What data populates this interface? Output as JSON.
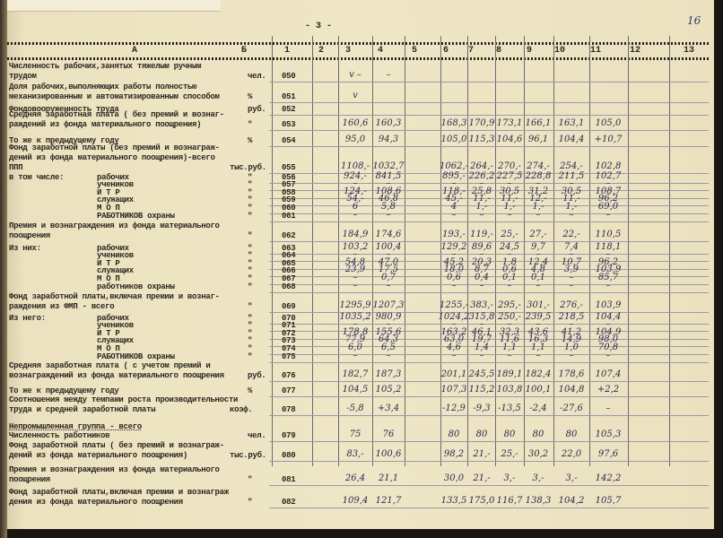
{
  "page_number": "- 3 -",
  "archive_sheet_number": "16",
  "header": {
    "A": "А",
    "B": "Б",
    "cols": [
      "1",
      "2",
      "3",
      "4",
      "5",
      "6",
      "7",
      "8",
      "9",
      "10",
      "11",
      "12",
      "13"
    ]
  },
  "rows": [
    {
      "code": "050",
      "unit": "чел.",
      "label": [
        "Численность рабочих,занятых тяжелым ручным",
        "трудом"
      ],
      "v": {
        "3": "v  –",
        "4": "–"
      }
    },
    {
      "code": "051",
      "unit": "%",
      "label": [
        "Доля рабочих,выполняющих работы полностью",
        "механизированным и автоматизированным способом"
      ],
      "v": {
        "3": "v"
      }
    },
    {
      "code": "052",
      "unit": "руб.",
      "label": [
        "Фондовооруженность труда"
      ],
      "v": {}
    },
    {
      "code": "053",
      "unit": "\"",
      "label": [
        "Средняя заработная плата ( без премий и вознаг-",
        "раждений из фонда материального поощрения)"
      ],
      "v": {
        "3": "160,6",
        "4": "160,3",
        "6": "168,3",
        "7": "170,9",
        "8": "173,1",
        "9": "166,1",
        "10": "163,1",
        "11": "105,0"
      }
    },
    {
      "code": "054",
      "unit": "%",
      "label": [
        "То же к предыдущему году"
      ],
      "v": {
        "3": "95,0",
        "4": "94,3",
        "6": "105,0",
        "7": "115,3",
        "8": "104,6",
        "9": "96,1",
        "10": "104,4",
        "11": "+10,7"
      }
    },
    {
      "code": "055",
      "unit": "тыс.руб.",
      "label": [
        "Фонд заработной платы (без премий и вознаграж-",
        "дений из фонда материального поощрения)-всего",
        "                                   ППП"
      ],
      "v": {
        "3": "1108,-",
        "4": "1032,7",
        "6": "1062,-",
        "7": "264,-",
        "8": "270,-",
        "9": "274,-",
        "10": "254,-",
        "11": "102,8"
      }
    },
    {
      "code": "056",
      "unit": "\"",
      "prefix": "в том числе:",
      "label": [
        "рабочих"
      ],
      "sub": true,
      "v": {
        "3": "924,-",
        "4": "841,5",
        "6": "895,-",
        "7": "226,2",
        "8": "227,5",
        "9": "228,8",
        "10": "211,5",
        "11": "102,7"
      }
    },
    {
      "code": "057",
      "unit": "\"",
      "label": [
        "учеников"
      ],
      "sub": true,
      "v": {
        "3": "–",
        "4": "–",
        "6": "–",
        "7": "–",
        "8": "–",
        "9": "–",
        "10": "–",
        "11": "–"
      }
    },
    {
      "code": "058",
      "unit": "\"",
      "label": [
        "И Т Р"
      ],
      "sub": true,
      "v": {
        "3": "124,-",
        "4": "108,6",
        "6": "118,-",
        "7": "25,8",
        "8": "30,5",
        "9": "31,2",
        "10": "30,5",
        "11": "108,7"
      }
    },
    {
      "code": "059",
      "unit": "\"",
      "label": [
        "служащих"
      ],
      "sub": true,
      "v": {
        "3": "54,-",
        "4": "46,8",
        "6": "45,-",
        "7": "11,-",
        "8": "11,-",
        "9": "12,-",
        "10": "11,-",
        "11": "96,2"
      }
    },
    {
      "code": "060",
      "unit": "\"",
      "label": [
        "М О П"
      ],
      "sub": true,
      "v": {
        "3": "6",
        "4": "5,8",
        "6": "4",
        "7": "1,-",
        "8": "1,-",
        "9": "1,-",
        "10": "1,-",
        "11": "69,0"
      }
    },
    {
      "code": "061",
      "unit": "\"",
      "label": [
        "РАБОТНИКОВ охраны"
      ],
      "sub": true,
      "v": {
        "3": "–",
        "4": "–",
        "6": "–",
        "7": "–",
        "8": "–",
        "9": "–",
        "10": "–",
        "11": "–"
      }
    },
    {
      "code": "062",
      "unit": "\"",
      "label": [
        "Премия и вознаграждения из фонда материального",
        "поощрения"
      ],
      "v": {
        "3": "184,9",
        "4": "174,6",
        "6": "193,-",
        "7": "119,-",
        "8": "25,-",
        "9": "27,-",
        "10": "22,-",
        "11": "110,5"
      }
    },
    {
      "code": "063",
      "unit": "\"",
      "prefix": "Из них:",
      "label": [
        "рабочих"
      ],
      "sub": true,
      "v": {
        "3": "103,2",
        "4": "100,4",
        "6": "129,2",
        "7": "89,6",
        "8": "24,5",
        "9": "9,7",
        "10": "7,4",
        "11": "118,1"
      }
    },
    {
      "code": "064",
      "unit": "\"",
      "label": [
        "учеников"
      ],
      "sub": true,
      "v": {
        "3": "–",
        "4": "–",
        "6": "–",
        "7": "–",
        "8": "–",
        "9": "–",
        "10": "–",
        "11": "–"
      }
    },
    {
      "code": "065",
      "unit": "\"",
      "label": [
        "И Т Р"
      ],
      "sub": true,
      "v": {
        "3": "54,8",
        "4": "47,0",
        "6": "45,2",
        "7": "20,3",
        "8": "1,8",
        "9": "12,4",
        "10": "10,7",
        "11": "96,2"
      }
    },
    {
      "code": "066",
      "unit": "\"",
      "label": [
        "служащих"
      ],
      "sub": true,
      "v": {
        "3": "23,9",
        "4": "17,5",
        "6": "18,0",
        "7": "8,7",
        "8": "0,6",
        "9": "4,8",
        "10": "3,9",
        "11": "103,9"
      }
    },
    {
      "code": "067",
      "unit": "\"",
      "label": [
        "М О П"
      ],
      "sub": true,
      "v": {
        "3": "–",
        "4": "0,7",
        "6": "0,6",
        "7": "0,4",
        "8": "0,1",
        "9": "0,1",
        "10": "–",
        "11": "85,7"
      }
    },
    {
      "code": "068",
      "unit": "\"",
      "label": [
        "работников охраны"
      ],
      "sub": true,
      "v": {
        "3": "–",
        "4": "–",
        "6": "–",
        "7": "–",
        "8": "–",
        "9": "–",
        "10": "–",
        "11": "–"
      }
    },
    {
      "code": "069",
      "unit": "\"",
      "label": [
        "Фонд заработной платы,включая премии и вознаг-",
        "раждения из ФМП - всего"
      ],
      "v": {
        "3": "1295,9",
        "4": "1207,3",
        "6": "1255,-",
        "7": "383,-",
        "8": "295,-",
        "9": "301,-",
        "10": "276,-",
        "11": "103,9"
      }
    },
    {
      "code": "070",
      "unit": "\"",
      "prefix": "Из него:",
      "label": [
        "рабочих"
      ],
      "sub": true,
      "v": {
        "3": "1035,2",
        "4": "980,9",
        "6": "1024,2",
        "7": "315,8",
        "8": "250,-",
        "9": "239,5",
        "10": "218,5",
        "11": "104,4"
      }
    },
    {
      "code": "071",
      "unit": "\"",
      "label": [
        "учеников"
      ],
      "sub": true,
      "v": {
        "3": "–",
        "4": "–",
        "6": "–",
        "7": "–",
        "8": "–",
        "9": "–",
        "10": "–",
        "11": "–"
      }
    },
    {
      "code": "072",
      "unit": "\"",
      "label": [
        "И Т Р"
      ],
      "sub": true,
      "v": {
        "3": "178,8",
        "4": "155,6",
        "6": "163,2",
        "7": "46,1",
        "8": "32,3",
        "9": "43,6",
        "10": "41,2",
        "11": "104,9"
      }
    },
    {
      "code": "073",
      "unit": "\"",
      "label": [
        "служащих"
      ],
      "sub": true,
      "v": {
        "3": "77,9",
        "4": "64,3",
        "6": "63,0",
        "7": "19,7",
        "8": "11,6",
        "9": "16,3",
        "10": "14,9",
        "11": "98,0"
      }
    },
    {
      "code": "074",
      "unit": "\"",
      "label": [
        "М О П"
      ],
      "sub": true,
      "v": {
        "3": "6,0",
        "4": "6,5",
        "6": "4,6",
        "7": "1,4",
        "8": "1,1",
        "9": "1,1",
        "10": "1,0",
        "11": "70,8"
      }
    },
    {
      "code": "075",
      "unit": "\"",
      "label": [
        "РАБОТНИКОВ охраны"
      ],
      "sub": true,
      "v": {
        "3": "–",
        "4": "–",
        "6": "–",
        "7": "–",
        "8": "–",
        "9": "–",
        "10": "–",
        "11": "–"
      }
    },
    {
      "code": "076",
      "unit": "руб.",
      "label": [
        "Средняя заработная плата ( с учетом премий и",
        "вознаграждений из фонда материального поощрения"
      ],
      "v": {
        "3": "182,7",
        "4": "187,3",
        "6": "201,1",
        "7": "245,5",
        "8": "189,1",
        "9": "182,4",
        "10": "178,6",
        "11": "107,4"
      }
    },
    {
      "code": "077",
      "unit": "%",
      "label": [
        "То же к предыдущему году"
      ],
      "v": {
        "3": "104,5",
        "4": "105,2",
        "6": "107,3",
        "7": "115,2",
        "8": "103,8",
        "9": "100,1",
        "10": "104,8",
        "11": "+2,2"
      }
    },
    {
      "code": "078",
      "unit": "коэф.",
      "label": [
        "Соотношения между темпами роста производительности",
        "труда и средней заработной платы"
      ],
      "v": {
        "3": "-5,8",
        "4": "+3,4",
        "6": "-12,9",
        "7": "-9,3",
        "8": "-13,5",
        "9": "-2,4",
        "10": "-27,6",
        "11": "–"
      }
    },
    {
      "code": "",
      "unit": "",
      "label": [
        "Непромышленная группа - всего"
      ],
      "group": true,
      "v": {}
    },
    {
      "code": "079",
      "unit": "чел.",
      "label": [
        "Численность работников"
      ],
      "v": {
        "3": "75",
        "4": "76",
        "6": "80",
        "7": "80",
        "8": "80",
        "9": "80",
        "10": "80",
        "11": "105,3"
      }
    },
    {
      "code": "080",
      "unit": "тыс.руб.",
      "label": [
        "Фонд заработной платы ( без премий и вознаграж-",
        "дений из фонда материального поощрения)"
      ],
      "v": {
        "3": "83,-",
        "4": "100,6",
        "6": "98,2",
        "7": "21,-",
        "8": "25,-",
        "9": "30,2",
        "10": "22,0",
        "11": "97,6"
      }
    },
    {
      "code": "081",
      "unit": "\"",
      "label": [
        "Премия и вознаграждения из фонда материального",
        "поощрения"
      ],
      "v": {
        "3": "26,4",
        "4": "21,1",
        "6": "30,0",
        "7": "21,-",
        "8": "3,-",
        "9": "3,-",
        "10": "3,-",
        "11": "142,2"
      }
    },
    {
      "code": "082",
      "unit": "\"",
      "label": [
        "Фонд заработной платы,включая премии и вознаграж",
        "дения из фонда материального поощрения"
      ],
      "v": {
        "3": "109,4",
        "4": "121,7",
        "6": "133,5",
        "7": "175,0",
        "8": "116,7",
        "9": "138,3",
        "10": "104,2",
        "11": "105,7"
      }
    }
  ]
}
